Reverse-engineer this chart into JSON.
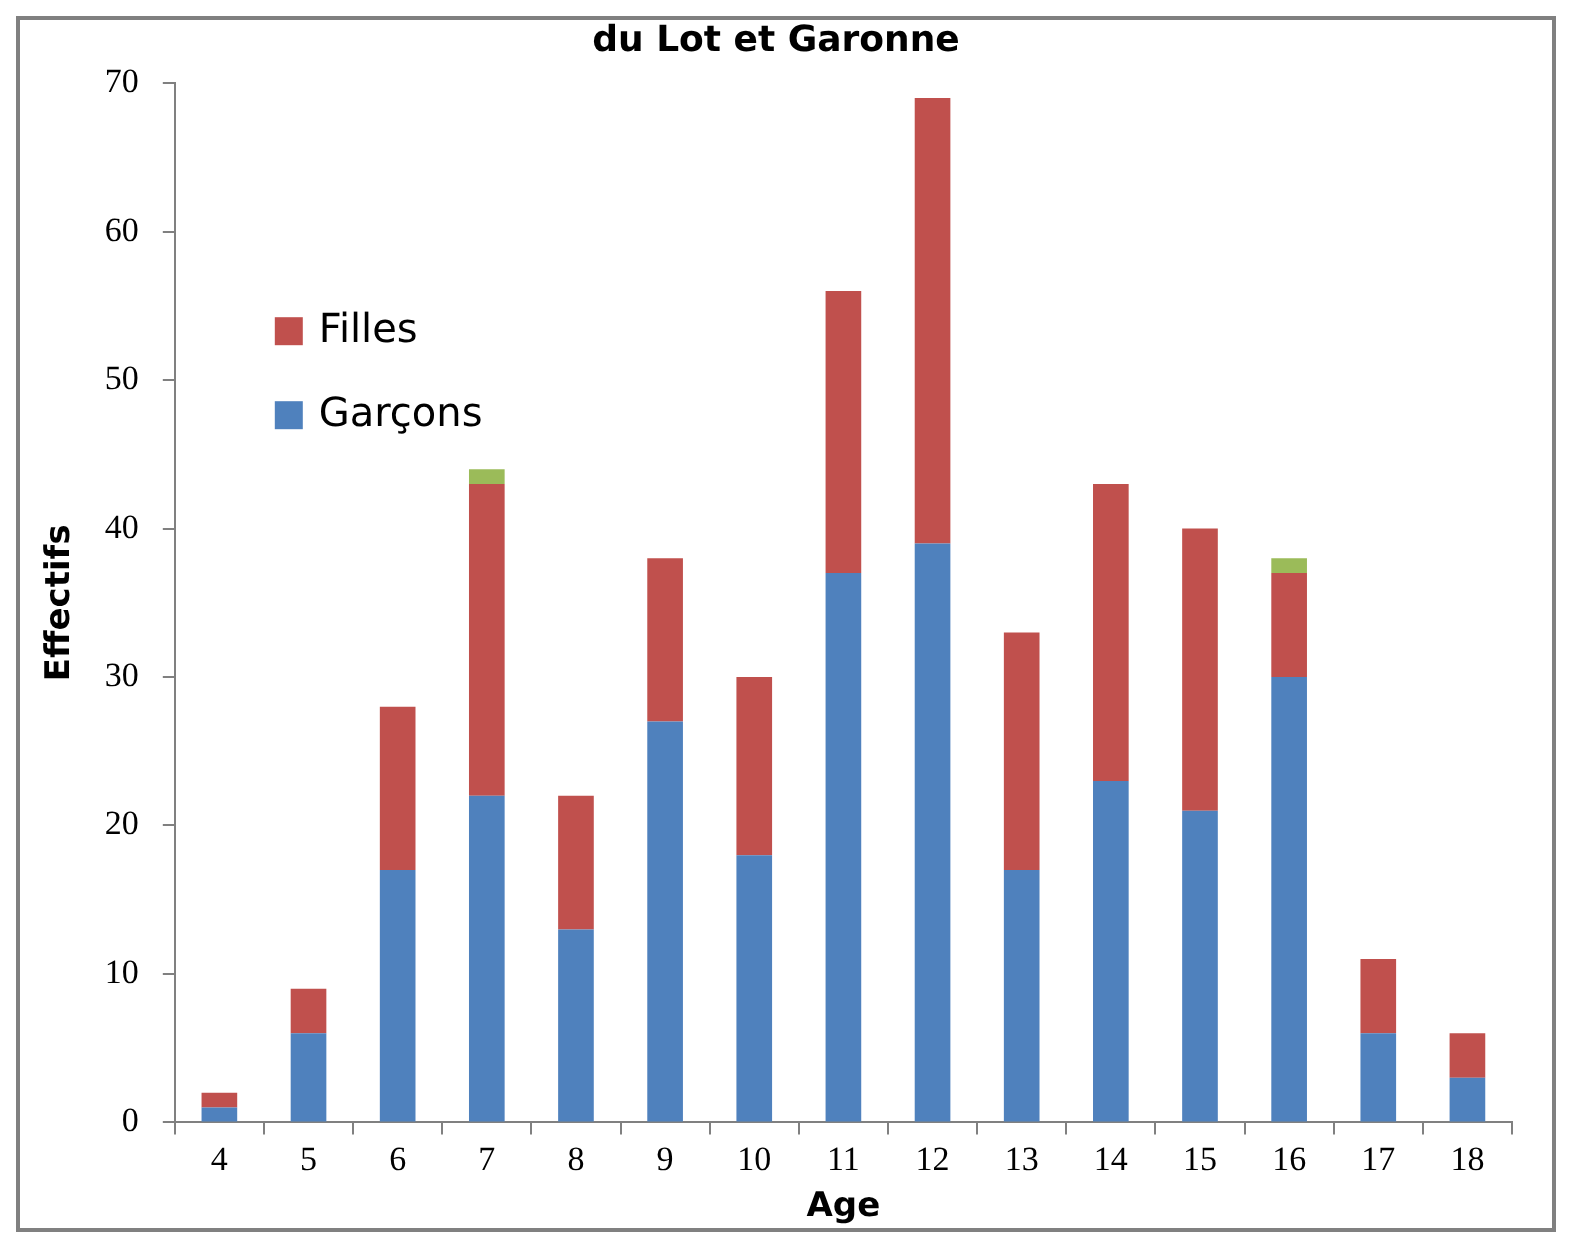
{
  "chart_data": {
    "type": "bar",
    "title": "du Lot et Garonne",
    "xlabel": "Age",
    "ylabel": "Effectifs",
    "categories": [
      "4",
      "5",
      "6",
      "7",
      "8",
      "9",
      "10",
      "11",
      "12",
      "13",
      "14",
      "15",
      "16",
      "17",
      "18"
    ],
    "stacked": true,
    "series": [
      {
        "name": "Garçons",
        "color": "#4f81bd",
        "values": [
          1,
          6,
          17,
          22,
          13,
          27,
          18,
          37,
          39,
          17,
          23,
          21,
          30,
          6,
          3
        ]
      },
      {
        "name": "Filles",
        "color": "#c0504d",
        "values": [
          1,
          3,
          11,
          21,
          9,
          11,
          12,
          19,
          30,
          16,
          20,
          19,
          7,
          5,
          3
        ]
      },
      {
        "color": "#9bbb59",
        "values": [
          null,
          null,
          null,
          1,
          null,
          null,
          null,
          null,
          null,
          null,
          null,
          null,
          1,
          null,
          null
        ]
      }
    ],
    "ylim": [
      0,
      70
    ],
    "yticks": [
      0,
      10,
      20,
      30,
      40,
      50,
      60,
      70
    ],
    "grid": false,
    "legend": "top left"
  }
}
